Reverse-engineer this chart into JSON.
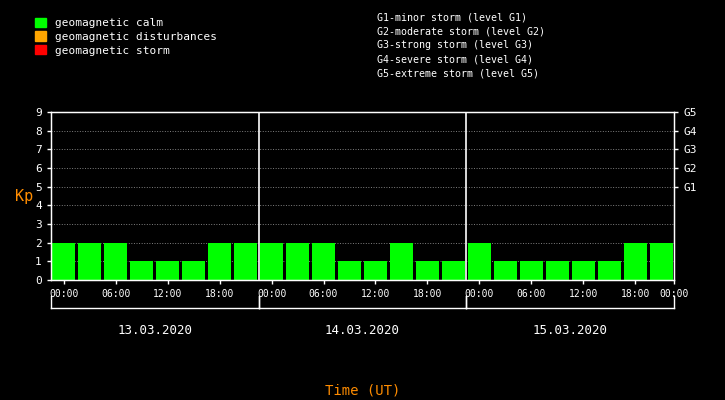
{
  "bg_color": "#000000",
  "bar_color_calm": "#00ff00",
  "bar_color_disturbance": "#ffa500",
  "bar_color_storm": "#ff0000",
  "axis_color": "#ffffff",
  "ylabel_color": "#ff8c00",
  "xlabel_color": "#ff8c00",
  "grid_color": "#ffffff",
  "day_label_color": "#ffffff",
  "right_label_color": "#ffffff",
  "ylim": [
    0,
    9
  ],
  "yticks": [
    0,
    1,
    2,
    3,
    4,
    5,
    6,
    7,
    8,
    9
  ],
  "ylabel": "Kp",
  "xlabel": "Time (UT)",
  "days": [
    "13.03.2020",
    "14.03.2020",
    "15.03.2020"
  ],
  "kp_values": [
    2,
    2,
    2,
    1,
    1,
    1,
    2,
    2,
    2,
    2,
    2,
    1,
    1,
    2,
    1,
    1,
    2,
    1,
    1,
    1,
    1,
    1,
    2,
    2
  ],
  "legend_entries": [
    {
      "label": "geomagnetic calm",
      "color": "#00ff00"
    },
    {
      "label": "geomagnetic disturbances",
      "color": "#ffa500"
    },
    {
      "label": "geomagnetic storm",
      "color": "#ff0000"
    }
  ],
  "right_labels": [
    {
      "y": 5,
      "text": "G1"
    },
    {
      "y": 6,
      "text": "G2"
    },
    {
      "y": 7,
      "text": "G3"
    },
    {
      "y": 8,
      "text": "G4"
    },
    {
      "y": 9,
      "text": "G5"
    }
  ],
  "storm_legend": [
    "G1-minor storm (level G1)",
    "G2-moderate storm (level G2)",
    "G3-strong storm (level G3)",
    "G4-severe storm (level G4)",
    "G5-extreme storm (level G5)"
  ],
  "time_ticks": [
    "00:00",
    "06:00",
    "12:00",
    "18:00",
    "00:00",
    "06:00",
    "12:00",
    "18:00",
    "00:00",
    "06:00",
    "12:00",
    "18:00",
    "00:00"
  ],
  "bar_width": 0.88,
  "num_bars_per_day": 8
}
